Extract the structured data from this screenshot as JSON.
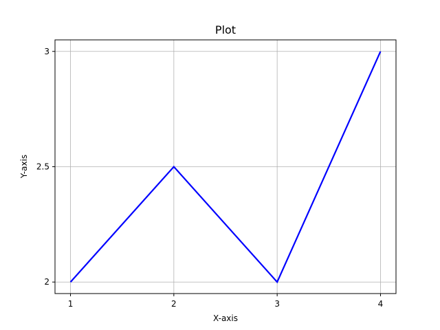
{
  "chart_data": {
    "type": "line",
    "title": "Plot",
    "xlabel": "X-axis",
    "ylabel": "Y-axis",
    "x": [
      1,
      2,
      3,
      4
    ],
    "series": [
      {
        "values": [
          2,
          2.5,
          2,
          3
        ],
        "color": "#0000ff"
      }
    ],
    "xlim": [
      0.85,
      4.15
    ],
    "ylim": [
      1.95,
      3.05
    ],
    "xticks": [
      1,
      2,
      3,
      4
    ],
    "xtick_labels": [
      "1",
      "2",
      "3",
      "4"
    ],
    "yticks": [
      2,
      2.5,
      3
    ],
    "ytick_labels": [
      "2",
      "2.5",
      "3"
    ],
    "grid": true,
    "grid_color": "#b0b0b0",
    "axis_color": "#000000"
  }
}
